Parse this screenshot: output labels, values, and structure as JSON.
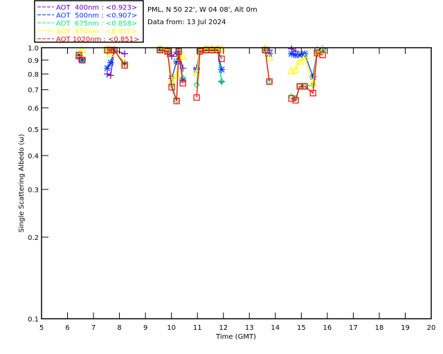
{
  "header": {
    "site": "PML, N 50 22', W 04 08', Alt 0m",
    "date": "Data from: 13 Jul 2024"
  },
  "chart_data": {
    "type": "scatter",
    "title": "PML, N 50 22', W 04 08', Alt 0m",
    "xlabel": "Time (GMT)",
    "ylabel": "Single Scattering Albedo (ω)",
    "xlim": [
      5,
      20
    ],
    "ylim": [
      0.1,
      1.0
    ],
    "yscale": "log",
    "xticks": [
      "5",
      "6",
      "7",
      "8",
      "9",
      "10",
      "11",
      "12",
      "13",
      "14",
      "15",
      "16",
      "17",
      "18",
      "19",
      "20"
    ],
    "yticks": [
      "0.1",
      "0.2",
      "0.3",
      "0.4",
      "0.5",
      "0.6",
      "0.7",
      "0.8",
      "0.9",
      "1.0"
    ],
    "legend_position": "top-left",
    "series": [
      {
        "name": "AOT  400nm : <0.923>",
        "color": "#6600cc",
        "marker": "plus",
        "points": [
          [
            6.44,
            0.91
          ],
          [
            6.57,
            0.91
          ],
          [
            7.53,
            0.8
          ],
          [
            7.66,
            0.79
          ],
          [
            7.8,
            0.98
          ],
          [
            8.2,
            0.95
          ],
          [
            9.56,
            0.99
          ],
          [
            9.85,
            0.95
          ],
          [
            10.01,
            0.93
          ],
          [
            10.2,
            0.96
          ],
          [
            10.28,
            0.97
          ],
          [
            10.44,
            0.84
          ],
          [
            10.97,
            0.84
          ],
          [
            11.1,
            0.98
          ],
          [
            11.34,
            0.99
          ],
          [
            11.55,
            0.99
          ],
          [
            11.77,
            0.99
          ],
          [
            11.93,
            0.75
          ],
          [
            13.61,
            0.99
          ],
          [
            13.77,
            0.98
          ],
          [
            14.62,
            0.99
          ],
          [
            14.78,
            0.97
          ],
          [
            15.45,
            0.78
          ],
          [
            15.61,
            0.98
          ],
          [
            15.82,
            0.99
          ]
        ]
      },
      {
        "name": "AOT  500nm : <0.907>",
        "color": "#0033ff",
        "marker": "asterisk",
        "points": [
          [
            6.44,
            0.94
          ],
          [
            6.57,
            0.9
          ],
          [
            7.53,
            0.84
          ],
          [
            7.66,
            0.88
          ],
          [
            7.8,
            0.98
          ],
          [
            8.2,
            0.87
          ],
          [
            9.56,
            0.98
          ],
          [
            9.85,
            0.97
          ],
          [
            10.01,
            0.77
          ],
          [
            10.2,
            0.89
          ],
          [
            10.28,
            0.93
          ],
          [
            10.44,
            0.76
          ],
          [
            10.97,
            0.83
          ],
          [
            11.1,
            0.97
          ],
          [
            11.34,
            0.98
          ],
          [
            11.55,
            0.98
          ],
          [
            11.77,
            0.98
          ],
          [
            11.93,
            0.83
          ],
          [
            13.61,
            0.98
          ],
          [
            13.77,
            0.95
          ],
          [
            14.62,
            0.95
          ],
          [
            14.78,
            0.94
          ],
          [
            14.94,
            0.94
          ],
          [
            15.13,
            0.95
          ],
          [
            15.45,
            0.78
          ],
          [
            15.61,
            0.97
          ],
          [
            15.82,
            0.98
          ]
        ]
      },
      {
        "name": "AOT  675nm : <0.858>",
        "color": "#00ee77",
        "marker": "diamond",
        "points": [
          [
            6.44,
            0.94
          ],
          [
            6.57,
            0.9
          ],
          [
            7.53,
            0.97
          ],
          [
            7.66,
            0.98
          ],
          [
            7.8,
            0.98
          ],
          [
            8.2,
            0.88
          ],
          [
            9.56,
            0.98
          ],
          [
            9.85,
            0.97
          ],
          [
            10.01,
            0.73
          ],
          [
            10.2,
            0.64
          ],
          [
            10.28,
            0.97
          ],
          [
            10.44,
            0.77
          ],
          [
            10.97,
            0.73
          ],
          [
            11.1,
            0.97
          ],
          [
            11.34,
            0.98
          ],
          [
            11.55,
            0.98
          ],
          [
            11.77,
            0.98
          ],
          [
            11.93,
            0.75
          ],
          [
            13.61,
            0.98
          ],
          [
            13.77,
            0.75
          ],
          [
            14.62,
            0.66
          ],
          [
            14.78,
            0.65
          ],
          [
            14.94,
            0.72
          ],
          [
            15.13,
            0.72
          ],
          [
            15.45,
            0.73
          ],
          [
            15.61,
            0.96
          ],
          [
            15.82,
            0.97
          ]
        ]
      },
      {
        "name": "AOT  870nm : <0.911>",
        "color": "#ffff00",
        "marker": "triangle",
        "points": [
          [
            6.44,
            0.95
          ],
          [
            6.57,
            0.98
          ],
          [
            7.53,
            0.99
          ],
          [
            7.66,
            0.95
          ],
          [
            7.8,
            0.98
          ],
          [
            8.2,
            0.88
          ],
          [
            9.56,
            0.99
          ],
          [
            9.85,
            0.98
          ],
          [
            10.01,
            0.76
          ],
          [
            10.2,
            0.79
          ],
          [
            10.28,
            0.92
          ],
          [
            10.44,
            0.93
          ],
          [
            10.97,
            0.81
          ],
          [
            11.1,
            0.98
          ],
          [
            11.34,
            0.99
          ],
          [
            11.55,
            0.99
          ],
          [
            11.77,
            0.99
          ],
          [
            11.93,
            0.99
          ],
          [
            13.61,
            0.99
          ],
          [
            13.77,
            0.92
          ],
          [
            14.62,
            0.82
          ],
          [
            14.78,
            0.83
          ],
          [
            14.94,
            0.89
          ],
          [
            15.13,
            0.92
          ],
          [
            15.45,
            0.74
          ],
          [
            15.61,
            0.97
          ],
          [
            15.82,
            0.98
          ]
        ]
      },
      {
        "name": "AOT 1020nm : <0.851>",
        "color": "#ff0000",
        "marker": "square",
        "points": [
          [
            6.44,
            0.94
          ],
          [
            6.57,
            0.9
          ],
          [
            7.53,
            0.98
          ],
          [
            7.66,
            0.98
          ],
          [
            7.8,
            0.98
          ],
          [
            8.2,
            0.86
          ],
          [
            9.56,
            0.98
          ],
          [
            9.85,
            0.97
          ],
          [
            10.01,
            0.715
          ],
          [
            10.2,
            0.636
          ],
          [
            10.28,
            0.97
          ],
          [
            10.44,
            0.74
          ],
          [
            10.97,
            0.655
          ],
          [
            11.1,
            0.97
          ],
          [
            11.34,
            0.98
          ],
          [
            11.55,
            0.98
          ],
          [
            11.77,
            0.98
          ],
          [
            11.93,
            0.91
          ],
          [
            13.61,
            0.98
          ],
          [
            13.77,
            0.75
          ],
          [
            14.62,
            0.65
          ],
          [
            14.78,
            0.64
          ],
          [
            14.94,
            0.72
          ],
          [
            15.13,
            0.72
          ],
          [
            15.45,
            0.68
          ],
          [
            15.61,
            0.955
          ],
          [
            15.82,
            0.94
          ]
        ]
      }
    ]
  }
}
